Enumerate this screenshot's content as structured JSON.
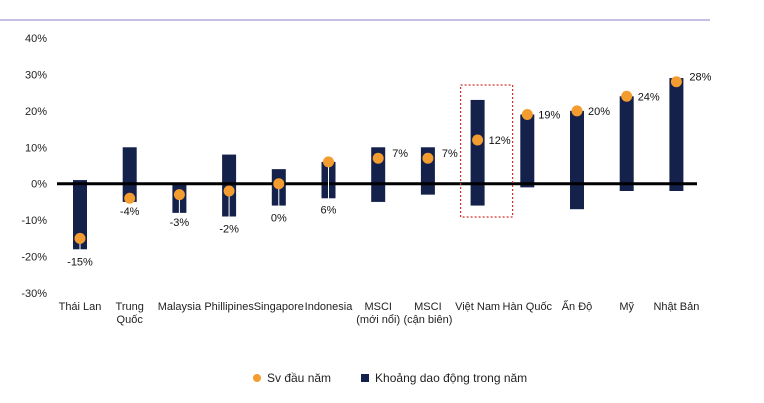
{
  "colors": {
    "bar": "#14214a",
    "dot": "#f39c2f",
    "top_rule": "#8a7fc8",
    "zero_line": "#000000",
    "highlight_box": "#d0312d"
  },
  "legend": {
    "dot_label": "Sv đầu năm",
    "bar_label": "Khoảng dao động trong năm"
  },
  "chart_data": {
    "type": "bar",
    "subtype": "floating-range-with-markers",
    "title": "",
    "xlabel": "",
    "ylabel": "",
    "ylim": [
      -30,
      40
    ],
    "yticks": [
      -30,
      -20,
      -10,
      0,
      10,
      20,
      30,
      40
    ],
    "ytick_labels": [
      "-30%",
      "-20%",
      "-10%",
      "0%",
      "10%",
      "20%",
      "30%",
      "40%"
    ],
    "grid": false,
    "legend_position": "bottom",
    "highlight_category": "Việt Nam",
    "categories": [
      [
        "Thái Lan"
      ],
      [
        "Trung",
        "Quốc"
      ],
      [
        "Malaysia"
      ],
      [
        "Phillipines"
      ],
      [
        "Singapore"
      ],
      [
        "Indonesia"
      ],
      [
        "MSCI",
        "(mới nổi)"
      ],
      [
        "MSCI",
        "(cận biên)"
      ],
      [
        "Việt Nam"
      ],
      [
        "Hàn Quốc"
      ],
      [
        "Ấn Độ"
      ],
      [
        "Mỹ"
      ],
      [
        "Nhật Bản"
      ]
    ],
    "series": [
      {
        "name": "Khoảng dao động trong năm",
        "low": [
          -18,
          -5,
          -8,
          -9,
          -6,
          -4,
          -5,
          -3,
          -6,
          -1,
          -7,
          -2,
          -2
        ],
        "high": [
          1,
          10,
          0,
          8,
          4,
          6,
          10,
          10,
          23,
          19,
          20,
          24,
          29
        ]
      },
      {
        "name": "Sv đầu năm",
        "values": [
          -15,
          -4,
          -3,
          -2,
          0,
          6,
          7,
          7,
          12,
          19,
          20,
          24,
          28
        ],
        "labels": [
          "-15%",
          "-4%",
          "-3%",
          "-2%",
          "0%",
          "6%",
          "7%",
          "7%",
          "12%",
          "19%",
          "20%",
          "24%",
          "28%"
        ]
      }
    ]
  }
}
